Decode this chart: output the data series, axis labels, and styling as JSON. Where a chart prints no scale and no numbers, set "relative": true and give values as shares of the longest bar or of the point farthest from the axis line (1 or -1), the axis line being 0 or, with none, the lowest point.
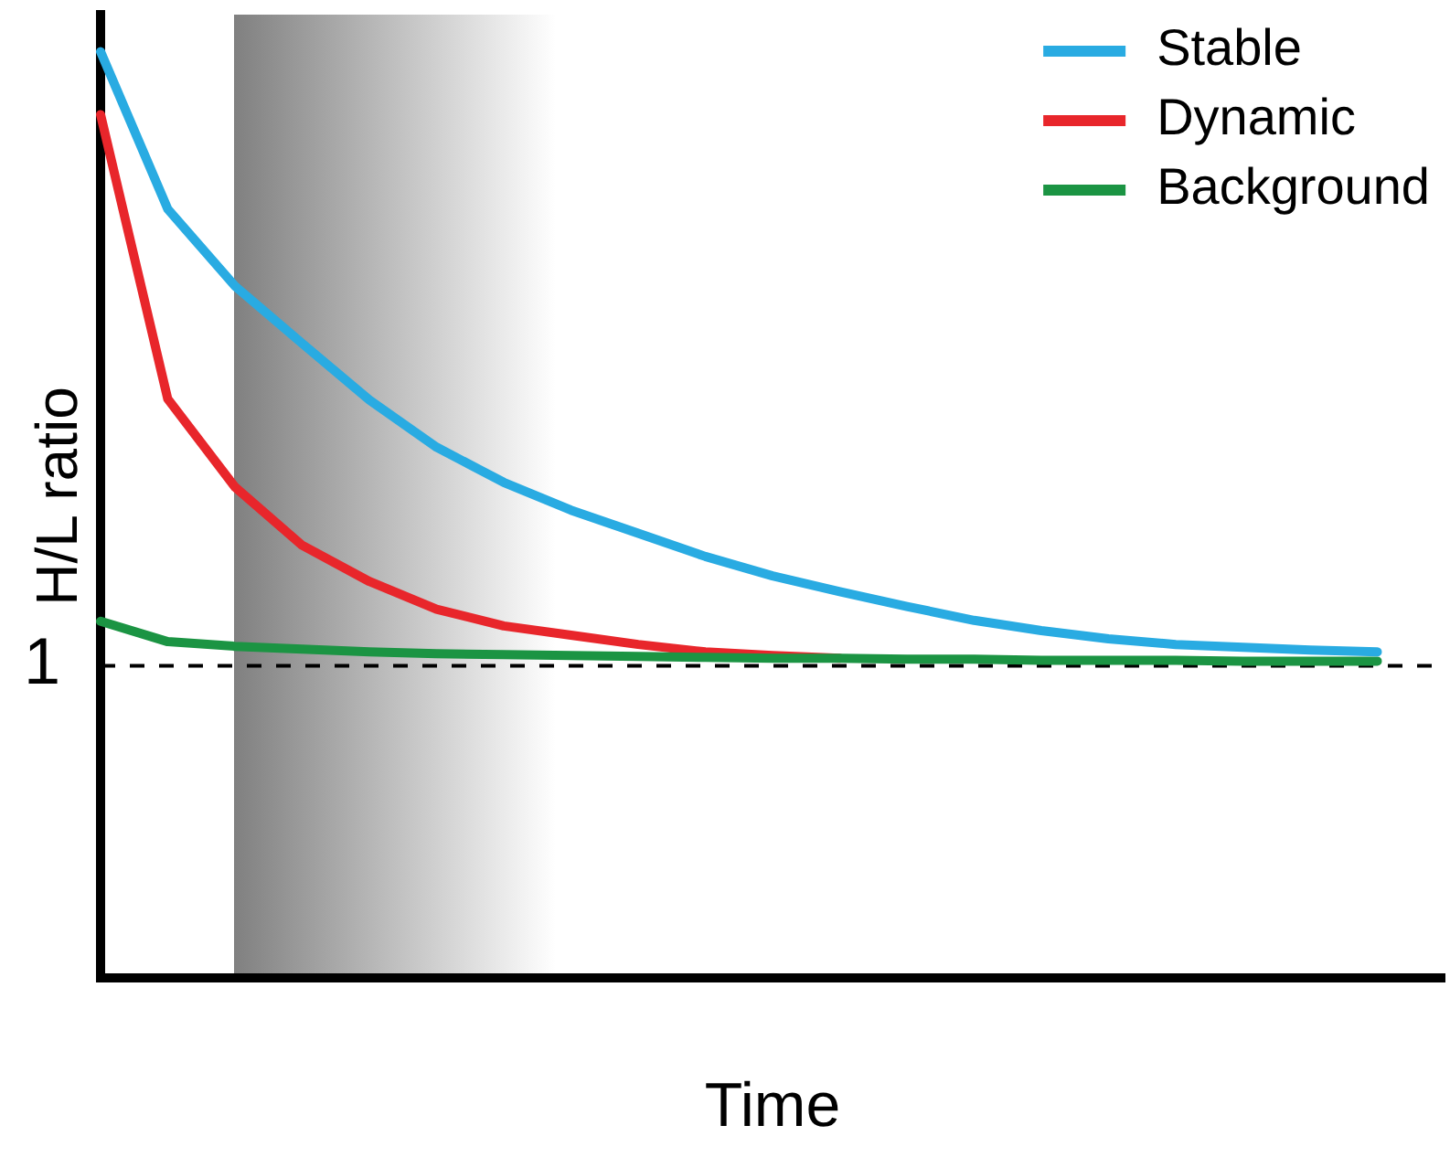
{
  "chart_data": {
    "type": "line",
    "relative": true,
    "xlabel": "Time",
    "ylabel": "H/L ratio",
    "legend": "top right",
    "marker": "none",
    "line_style": "solid",
    "categories": [
      null,
      null,
      null,
      null,
      null,
      null,
      null,
      null,
      null,
      null,
      null,
      null,
      null,
      null,
      null,
      null,
      null,
      null,
      null,
      null,
      null
    ],
    "series": [
      {
        "name": "Stable",
        "color": "#29abe2",
        "values": [
          1.0,
          0.83,
          0.747,
          0.685,
          0.624,
          0.573,
          0.535,
          0.505,
          0.48,
          0.455,
          0.434,
          0.417,
          0.401,
          0.386,
          0.375,
          0.366,
          0.36,
          0.357,
          0.354,
          0.352,
          null
        ]
      },
      {
        "name": "Dynamic",
        "color": "#e8262b",
        "values": [
          0.932,
          0.625,
          0.53,
          0.467,
          0.428,
          0.398,
          0.38,
          0.37,
          0.36,
          0.352,
          0.348,
          0.345,
          null,
          null,
          null,
          null,
          null,
          null,
          null,
          null,
          null
        ]
      },
      {
        "name": "Background",
        "color": "#1b9443",
        "values": [
          0.385,
          0.363,
          0.358,
          0.355,
          0.352,
          0.35,
          0.349,
          0.348,
          0.347,
          0.346,
          0.345,
          0.345,
          0.344,
          0.344,
          0.343,
          0.343,
          0.343,
          0.342,
          0.342,
          0.342,
          null
        ]
      }
    ],
    "ref_lines": [
      {
        "axis": "y",
        "value": 0.337,
        "color": "#000000",
        "line_style": "dashed"
      }
    ],
    "annotations": [
      "1"
    ]
  }
}
